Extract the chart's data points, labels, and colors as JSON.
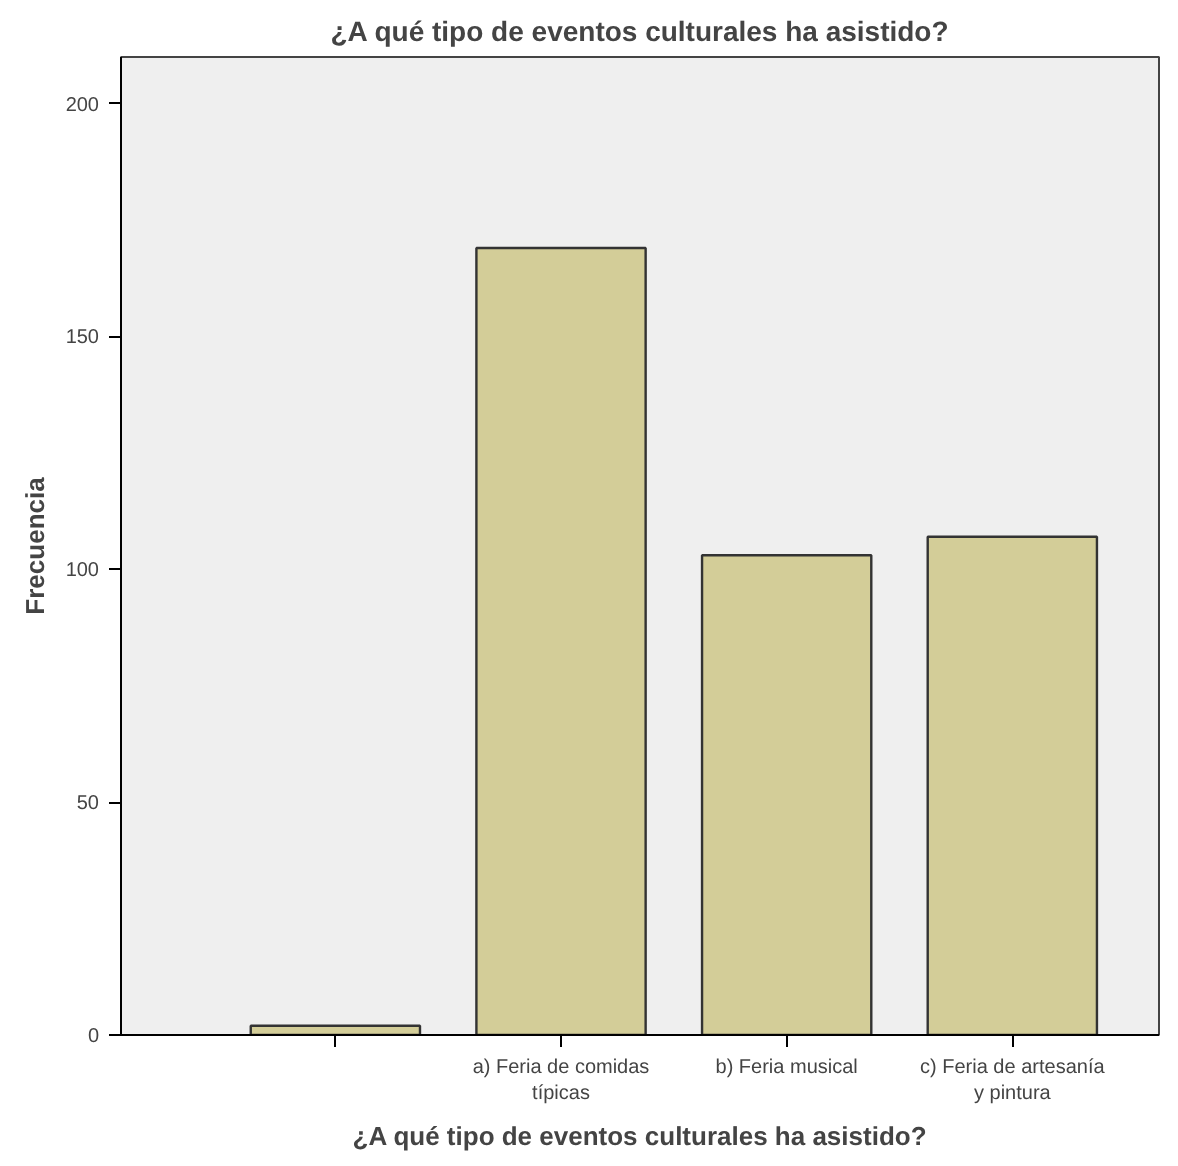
{
  "chart_data": {
    "type": "bar",
    "title": "¿A qué tipo de eventos culturales ha asistido?",
    "xlabel": "¿A qué tipo de eventos culturales ha asistido?",
    "ylabel": "Frecuencia",
    "categories": [
      null,
      "a) Feria de comidas típicas",
      "b) Feria musical",
      "c) Feria de artesanía y pintura"
    ],
    "values": [
      2,
      169,
      103,
      107
    ],
    "color": "#d3cd98",
    "ylim": [
      0,
      210
    ],
    "yticks": [
      0,
      50,
      100,
      150,
      200
    ],
    "grid": false
  }
}
